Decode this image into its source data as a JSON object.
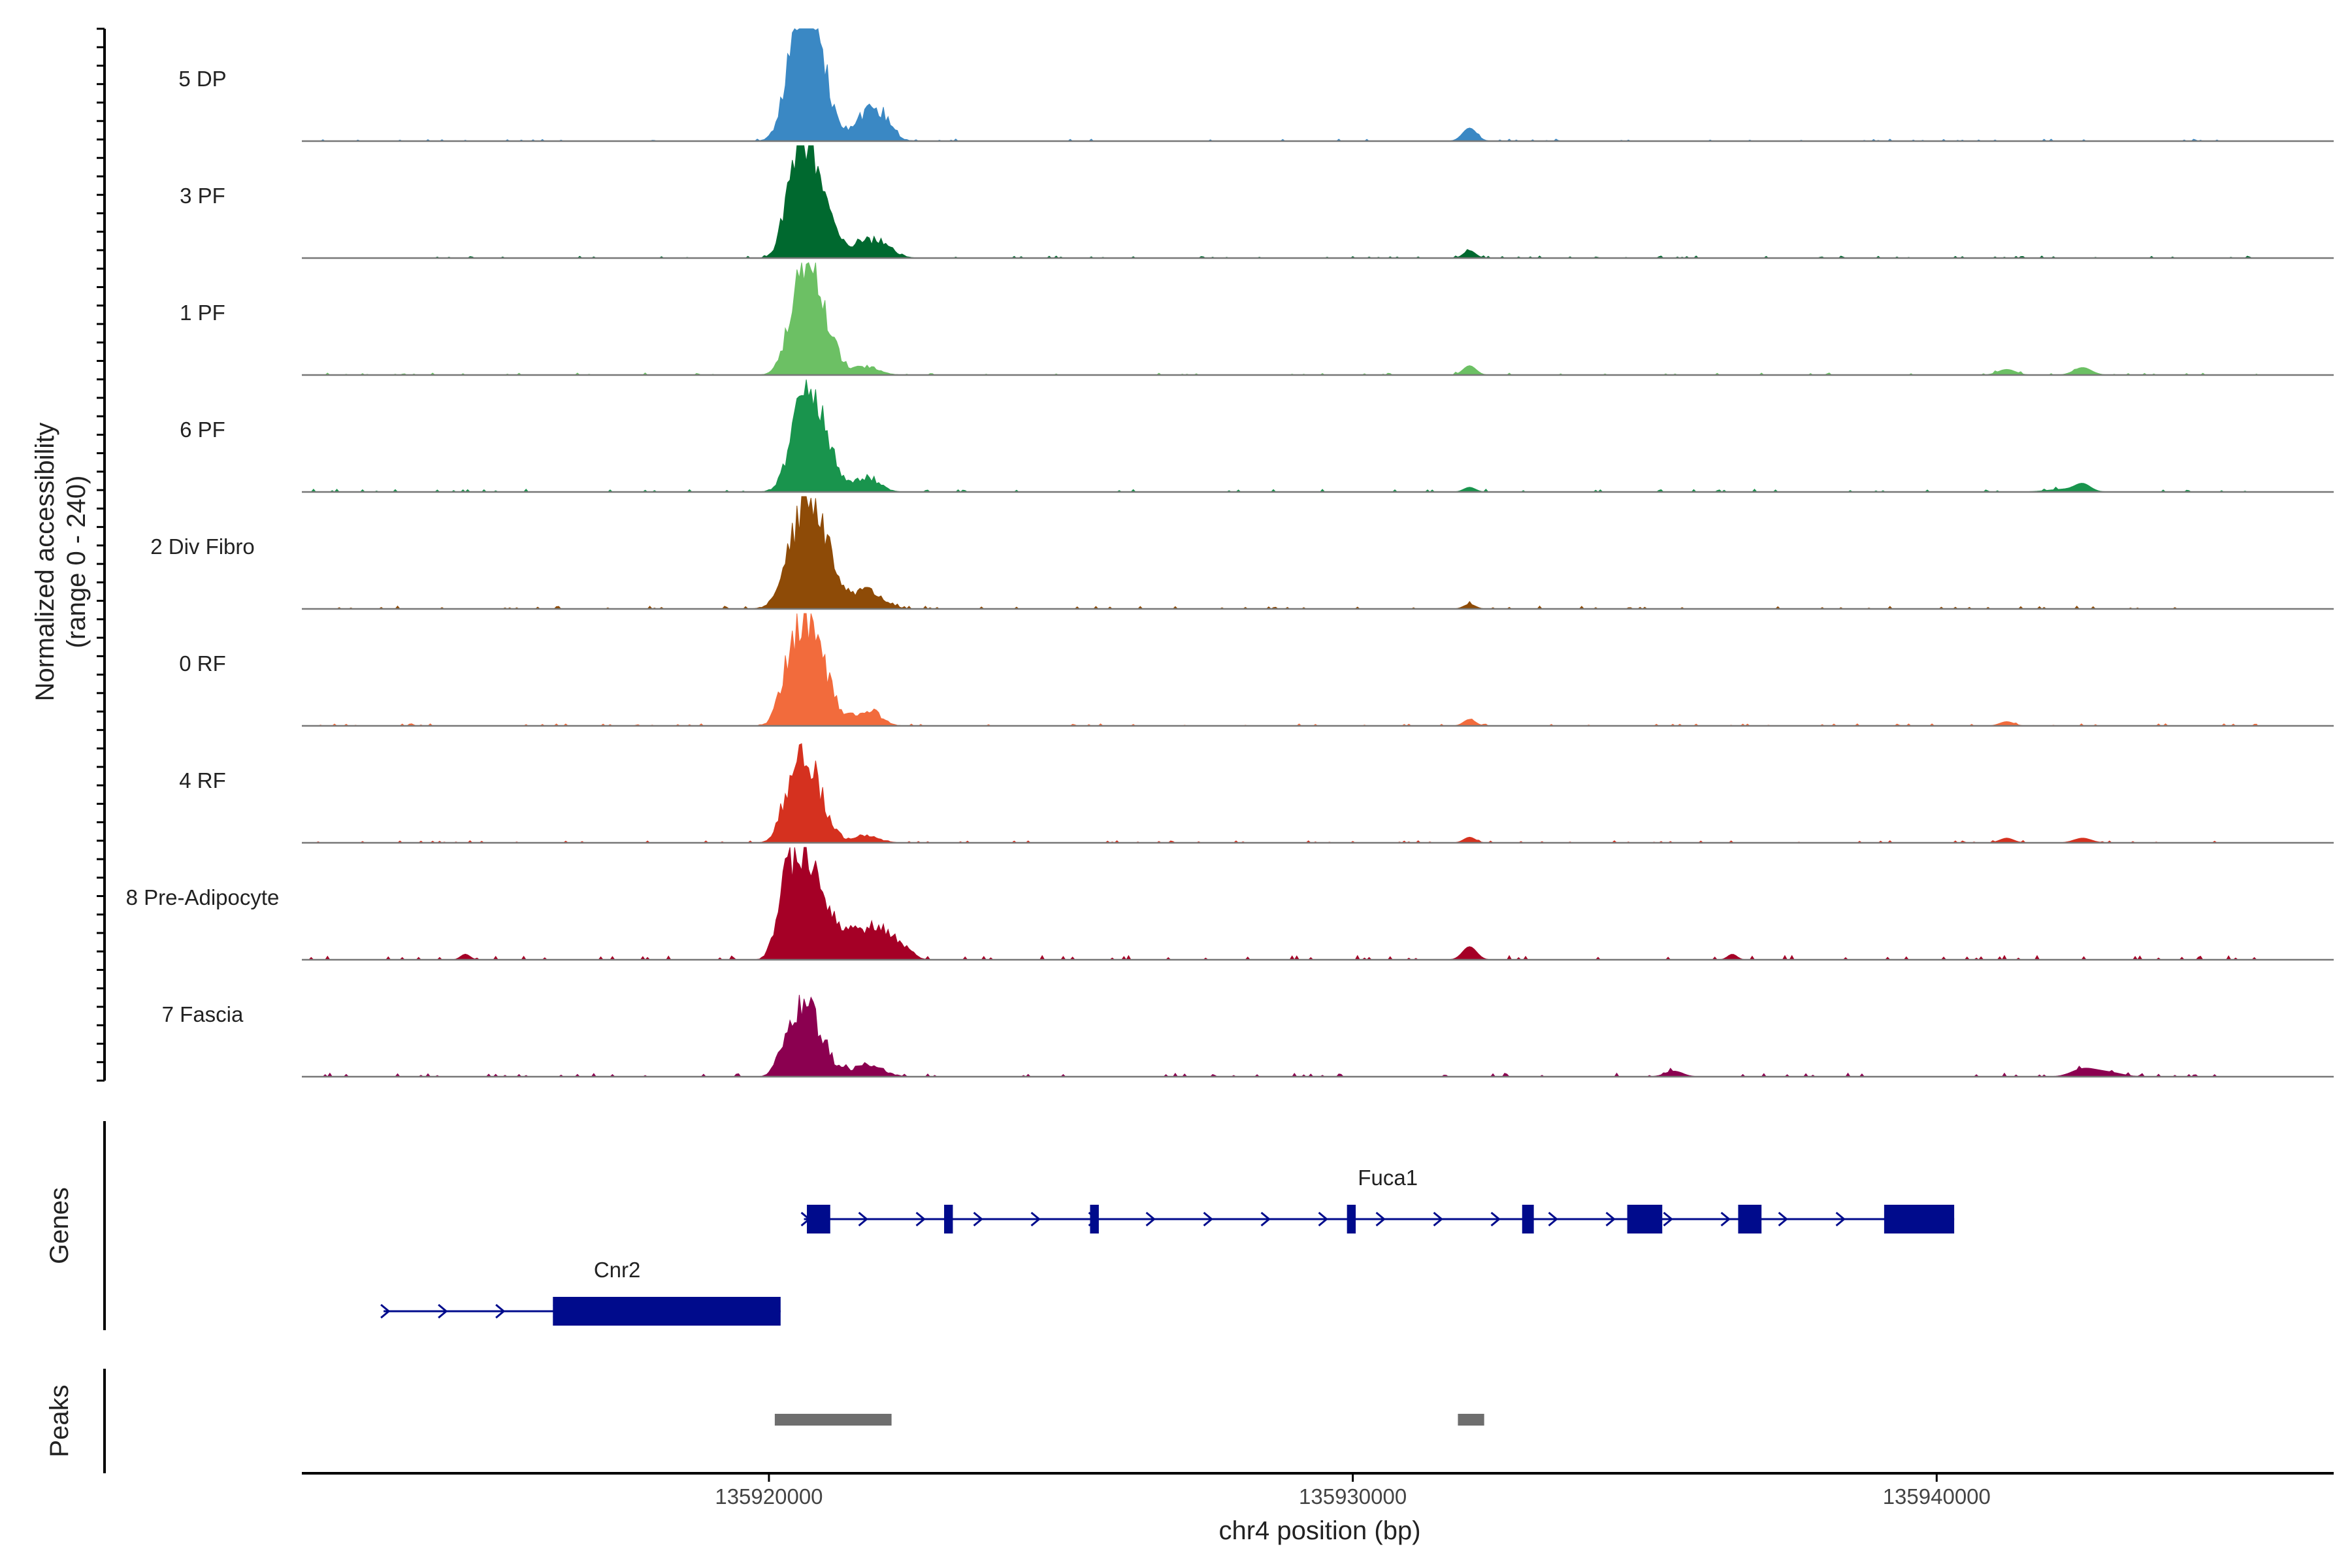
{
  "chart_data": {
    "type": "area",
    "ylabel_line1": "Normalized accessibility",
    "ylabel_line2": "(range 0 - 240)",
    "ylim": [
      0,
      240
    ],
    "xlabel": "chr4 position (bp)",
    "xlim": [
      135912000,
      135946800
    ],
    "xticks": [
      135920000,
      135930000,
      135940000
    ],
    "xtick_labels": [
      "135920000",
      "135930000",
      "135940000"
    ],
    "series": [
      {
        "name": "5 DP",
        "color": "#3A88C4",
        "peaks": [
          [
            135920600,
            230,
            220
          ],
          [
            135920800,
            120,
            250
          ],
          [
            135920400,
            50,
            180
          ],
          [
            135921700,
            50,
            220
          ],
          [
            135921900,
            35,
            200
          ],
          [
            135932000,
            28,
            120
          ]
        ],
        "noise": 3
      },
      {
        "name": "3 PF",
        "color": "#00692F",
        "peaks": [
          [
            135920600,
            215,
            210
          ],
          [
            135920350,
            55,
            150
          ],
          [
            135920900,
            85,
            220
          ],
          [
            135921500,
            25,
            250
          ],
          [
            135921900,
            30,
            220
          ],
          [
            135932000,
            16,
            100
          ]
        ],
        "noise": 3
      },
      {
        "name": "1 PF",
        "color": "#6CC064",
        "peaks": [
          [
            135920600,
            220,
            220
          ],
          [
            135920900,
            85,
            250
          ],
          [
            135921700,
            18,
            200
          ],
          [
            135932000,
            20,
            110
          ],
          [
            135941200,
            12,
            150
          ],
          [
            135942500,
            16,
            150
          ]
        ],
        "noise": 3
      },
      {
        "name": "6 PF",
        "color": "#19944D",
        "peaks": [
          [
            135920600,
            170,
            220
          ],
          [
            135920900,
            90,
            260
          ],
          [
            135921700,
            28,
            200
          ],
          [
            135932000,
            10,
            100
          ],
          [
            135942500,
            15,
            130
          ],
          [
            135942200,
            6,
            300
          ]
        ],
        "noise": 4
      },
      {
        "name": "2 Div Fibro",
        "color": "#8E4B07",
        "peaks": [
          [
            135920600,
            200,
            260
          ],
          [
            135920950,
            80,
            250
          ],
          [
            135921600,
            28,
            180
          ],
          [
            135921850,
            20,
            200
          ],
          [
            135932000,
            10,
            100
          ]
        ],
        "noise": 4
      },
      {
        "name": "0 RF",
        "color": "#F26B3C",
        "peaks": [
          [
            135920600,
            185,
            210
          ],
          [
            135920300,
            70,
            150
          ],
          [
            135920900,
            85,
            250
          ],
          [
            135921700,
            35,
            200
          ],
          [
            135932000,
            14,
            100
          ],
          [
            135941200,
            9,
            120
          ]
        ],
        "noise": 3
      },
      {
        "name": "4 RF",
        "color": "#D5311F",
        "peaks": [
          [
            135920600,
            160,
            220
          ],
          [
            135920300,
            50,
            140
          ],
          [
            135920900,
            40,
            220
          ],
          [
            135921700,
            15,
            200
          ],
          [
            135932000,
            12,
            100
          ],
          [
            135941200,
            10,
            120
          ],
          [
            135942500,
            10,
            150
          ]
        ],
        "noise": 3
      },
      {
        "name": "8 Pre-Adipocyte",
        "color": "#A50026",
        "peaks": [
          [
            135920600,
            190,
            220
          ],
          [
            135920250,
            120,
            140
          ],
          [
            135921000,
            70,
            250
          ],
          [
            135921500,
            45,
            220
          ],
          [
            135921900,
            55,
            250
          ],
          [
            135922300,
            20,
            150
          ],
          [
            135932000,
            28,
            120
          ],
          [
            135914800,
            12,
            80
          ],
          [
            135936500,
            12,
            80
          ]
        ],
        "noise": 6
      },
      {
        "name": "7 Fascia",
        "color": "#8B0050",
        "peaks": [
          [
            135920600,
            140,
            220
          ],
          [
            135920300,
            40,
            150
          ],
          [
            135920900,
            35,
            250
          ],
          [
            135921700,
            25,
            250
          ],
          [
            135935500,
            12,
            150
          ],
          [
            135942500,
            15,
            200
          ],
          [
            135942900,
            10,
            250
          ]
        ],
        "noise": 5
      }
    ]
  },
  "genes": [
    {
      "name": "Fuca1",
      "start": 135920600,
      "end": 135940300,
      "strand": "+",
      "row": 0,
      "exons": [
        [
          135920650,
          135921050
        ],
        [
          135923000,
          135923150
        ],
        [
          135925500,
          135925650
        ],
        [
          135929900,
          135930050
        ],
        [
          135932900,
          135933100
        ],
        [
          135934700,
          135935300
        ],
        [
          135936600,
          135937000
        ],
        [
          135939100,
          135940300
        ]
      ]
    },
    {
      "name": "Cnr2",
      "start": 135913400,
      "end": 135920200,
      "strand": "+",
      "row": 1,
      "exons": [
        [
          135916300,
          135920200
        ]
      ]
    }
  ],
  "peaks": [
    [
      135920100,
      135922100
    ],
    [
      135931800,
      135932250
    ]
  ],
  "panel_titles": {
    "genes": "Genes",
    "peaks": "Peaks"
  }
}
